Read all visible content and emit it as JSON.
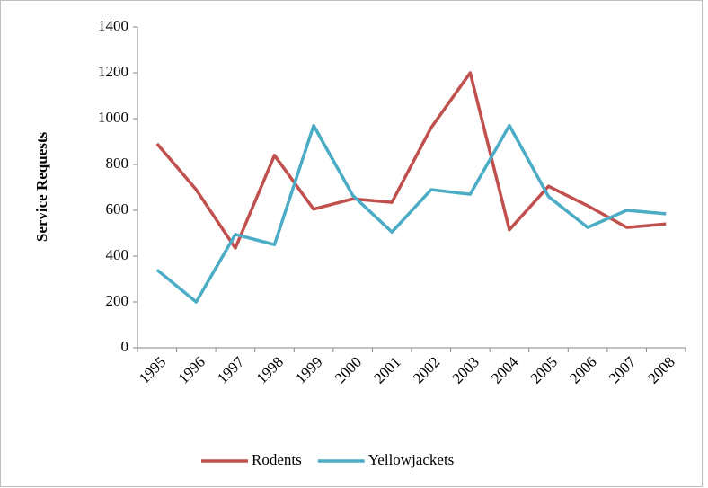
{
  "chart_data": {
    "type": "line",
    "y_label": "Service Requests",
    "categories": [
      "1995",
      "1996",
      "1997",
      "1998",
      "1999",
      "2000",
      "2001",
      "2002",
      "2003",
      "2004",
      "2005",
      "2006",
      "2007",
      "2008"
    ],
    "series": [
      {
        "name": "Rodents",
        "color": "#c0504d",
        "values": [
          890,
          690,
          435,
          840,
          605,
          650,
          635,
          960,
          1200,
          515,
          705,
          620,
          525,
          540
        ]
      },
      {
        "name": "Yellowjackets",
        "color": "#4bacc6",
        "values": [
          340,
          200,
          495,
          450,
          970,
          665,
          505,
          690,
          670,
          970,
          660,
          525,
          600,
          585
        ]
      }
    ],
    "ylim": [
      0,
      1400
    ],
    "yticks": [
      0,
      200,
      400,
      600,
      800,
      1000,
      1200,
      1400
    ],
    "legend": "bottom"
  }
}
